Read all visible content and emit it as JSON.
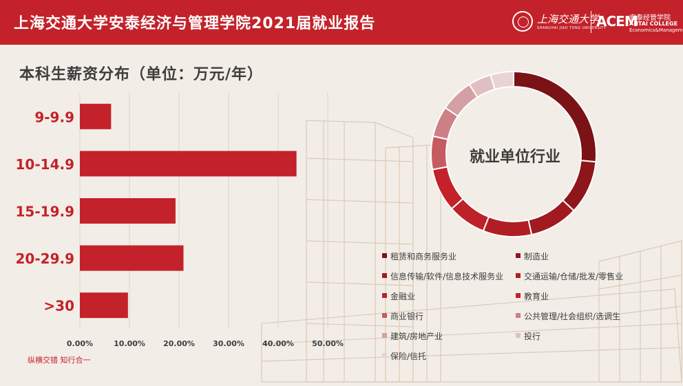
{
  "header": {
    "title": "上海交通大学安泰经济与管理学院2021届就业报告",
    "sjtu_name": "上海交通大学",
    "sjtu_en": "SHANGHAI JIAO TONG UNIVERSITY",
    "acem_mark": "ACEM",
    "acem_cn": "安泰经管学院",
    "acem_en1": "ANTAI COLLEGE",
    "acem_en2": "Economics&Management"
  },
  "section_title": "本科生薪资分布（单位：万元/年）",
  "footer": "纵横交错 知行合一",
  "colors": {
    "brand_red": "#c3222a"
  },
  "chart_data": [
    {
      "type": "bar",
      "orientation": "horizontal",
      "title": "本科生薪资分布（单位：万元/年）",
      "categories": [
        "9-9.9",
        "10-14.9",
        "15-19.9",
        "20-29.9",
        ">30"
      ],
      "values": [
        6.3,
        43.7,
        19.3,
        20.9,
        9.7
      ],
      "xlim": [
        0,
        50
      ],
      "ticks": [
        "0.00%",
        "10.00%",
        "20.00%",
        "30.00%",
        "40.00%",
        "50.00%"
      ],
      "grid": true,
      "color": "#c3222a"
    },
    {
      "type": "pie",
      "donut": true,
      "center_label": "就业单位行业",
      "legend_placement": "bottom",
      "slices": [
        {
          "label": "租赁和商务服务业",
          "value": 26.5,
          "color": "#7a1216"
        },
        {
          "label": "制造业",
          "value": 10.5,
          "color": "#8e161b"
        },
        {
          "label": "信息传输/软件/信息技术服务业",
          "value": 9.5,
          "color": "#a11a20"
        },
        {
          "label": "交通运输/仓储/批发/零售业",
          "value": 9.5,
          "color": "#b01e24"
        },
        {
          "label": "金融业",
          "value": 7.5,
          "color": "#bd2228"
        },
        {
          "label": "教育业",
          "value": 8.5,
          "color": "#c3222a"
        },
        {
          "label": "商业银行",
          "value": 6.5,
          "color": "#c65c61"
        },
        {
          "label": "公共管理/社会组织/选调生",
          "value": 6.0,
          "color": "#cd8085"
        },
        {
          "label": "建筑/房地产业",
          "value": 6.5,
          "color": "#d4a0a4"
        },
        {
          "label": "投行",
          "value": 4.5,
          "color": "#e0bfc2"
        },
        {
          "label": "保险/信托",
          "value": 4.5,
          "color": "#ead3d5"
        }
      ]
    }
  ]
}
